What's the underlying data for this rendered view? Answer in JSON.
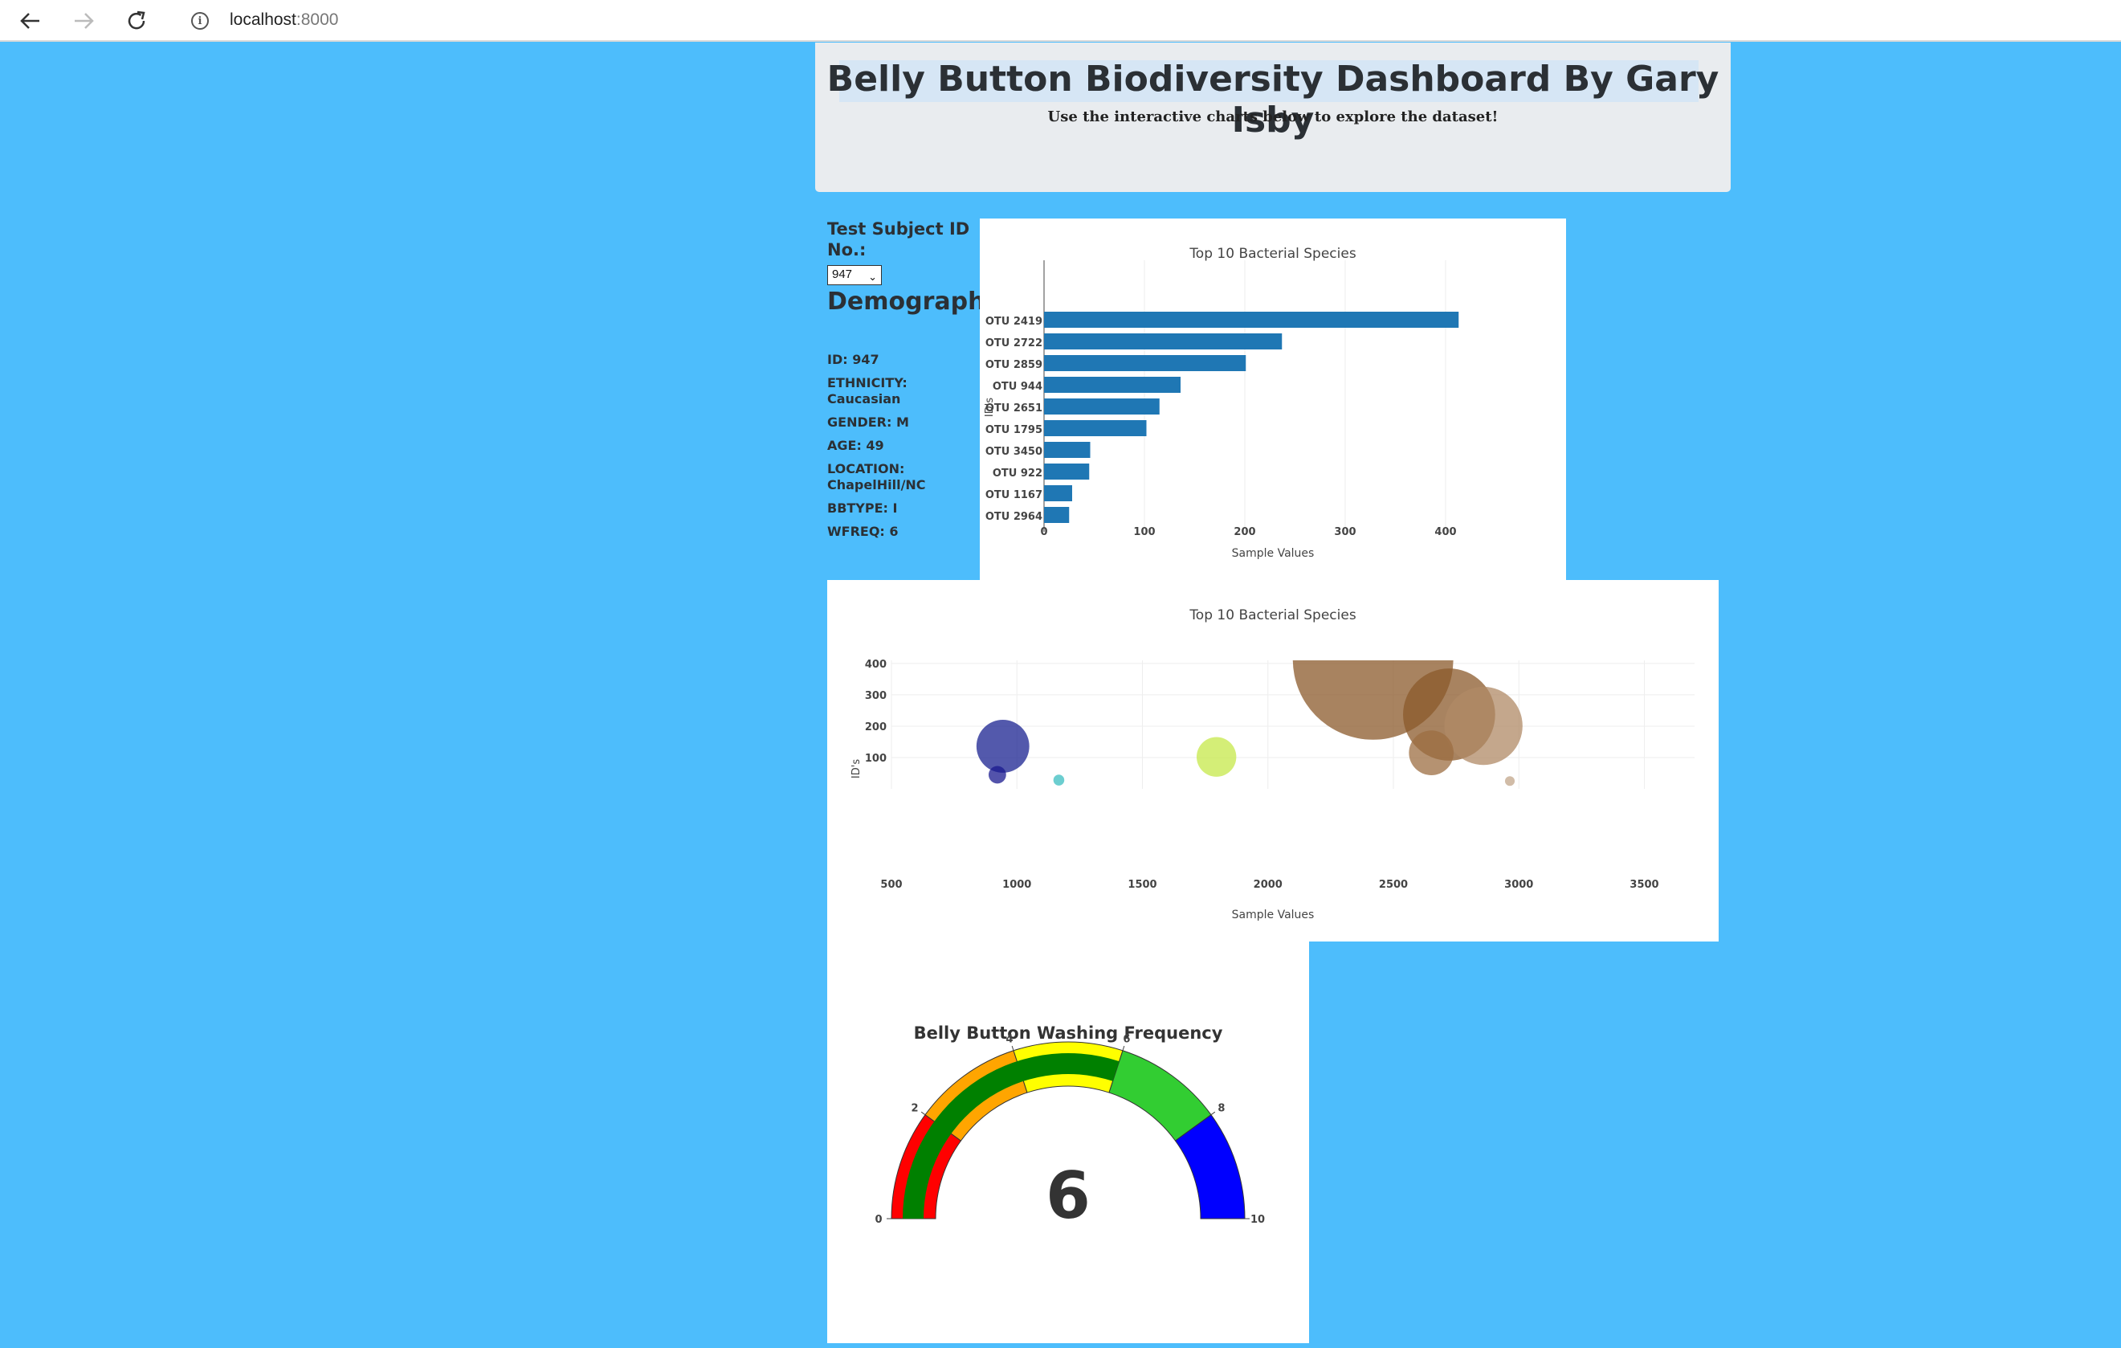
{
  "browser": {
    "url_host": "localhost",
    "url_port": ":8000"
  },
  "header": {
    "title": "Belly Button Biodiversity Dashboard By Gary Isby",
    "subtitle": "Use the interactive charts below to explore the dataset!"
  },
  "sidebar": {
    "select_label": "Test Subject ID No.:",
    "selected_id": "947",
    "demo_title": "Demographic Info",
    "demographics": [
      "ID: 947",
      "ETHNICITY: Caucasian",
      "GENDER: M",
      "AGE: 49",
      "LOCATION: ChapelHill/NC",
      "BBTYPE: I",
      "WFREQ: 6"
    ]
  },
  "chart_data": [
    {
      "type": "bar",
      "orientation": "horizontal",
      "title": "Top 10 Bacterial Species",
      "xlabel": "Sample Values",
      "ylabel": "ID's",
      "categories": [
        "OTU 2419",
        "OTU 2722",
        "OTU 2859",
        "OTU 944",
        "OTU 2651",
        "OTU 1795",
        "OTU 3450",
        "OTU 922",
        "OTU 1167",
        "OTU 2964"
      ],
      "values": [
        413,
        237,
        201,
        136,
        115,
        102,
        46,
        45,
        28,
        25
      ],
      "xlim": [
        0,
        420
      ],
      "xticks": [
        0,
        100,
        200,
        300,
        400
      ],
      "grid": true,
      "color": "#1f77b4"
    },
    {
      "type": "scatter",
      "subtype": "bubble",
      "title": "Top 10 Bacterial Species",
      "xlabel": "Sample Values",
      "ylabel": "ID's",
      "xlim": [
        500,
        3700
      ],
      "ylim": [
        0,
        410
      ],
      "xticks": [
        500,
        1000,
        1500,
        2000,
        2500,
        3000,
        3500
      ],
      "yticks": [
        100,
        200,
        300,
        400
      ],
      "grid": true,
      "points": [
        {
          "x": 2419,
          "y": 413,
          "color": "#8b5a2b"
        },
        {
          "x": 2722,
          "y": 237,
          "color": "#8b5a2b"
        },
        {
          "x": 2859,
          "y": 201,
          "color": "#b08a65"
        },
        {
          "x": 944,
          "y": 136,
          "color": "#1a2290"
        },
        {
          "x": 2651,
          "y": 115,
          "color": "#9c6e42"
        },
        {
          "x": 1795,
          "y": 102,
          "color": "#c5e84a"
        },
        {
          "x": 922,
          "y": 45,
          "color": "#1a1a8f"
        },
        {
          "x": 1167,
          "y": 28,
          "color": "#3bbec0"
        },
        {
          "x": 2964,
          "y": 25,
          "color": "#c2a68a"
        }
      ]
    },
    {
      "type": "gauge",
      "title": "Belly Button Washing Frequency",
      "value": 6,
      "range": [
        0,
        10
      ],
      "ticks": [
        0,
        2,
        4,
        6,
        8,
        10
      ],
      "outer_bands": [
        {
          "from": 0,
          "to": 2,
          "color": "#ff0000"
        },
        {
          "from": 2,
          "to": 4,
          "color": "#ffa500"
        },
        {
          "from": 4,
          "to": 6,
          "color": "#ffff00"
        },
        {
          "from": 6,
          "to": 8,
          "color": "#32cd32"
        },
        {
          "from": 8,
          "to": 10,
          "color": "#0000ff"
        }
      ],
      "bar_color": "#008000"
    }
  ]
}
